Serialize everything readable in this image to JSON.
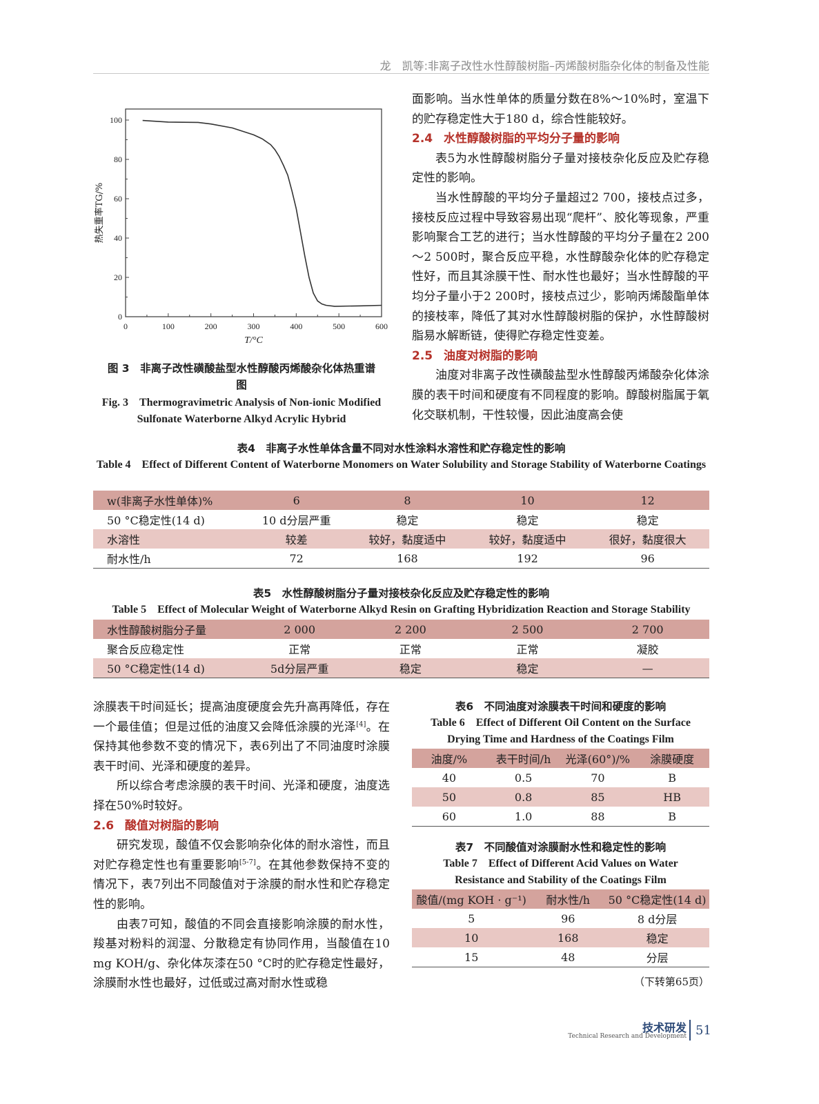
{
  "running_head": "龙　凯等:非离子改性水性醇酸树脂–丙烯酸树脂杂化体的制备及性能",
  "figure3": {
    "caption_cn": "图 3　非离子改性磺酸盐型水性醇酸丙烯酸杂化体热重谱图",
    "caption_en": "Fig. 3　Thermogravimetric Analysis of Non-ionic Modified Sulfonate Waterborne Alkyd Acrylic Hybrid"
  },
  "chart_data": {
    "type": "line",
    "xlabel": "T/°C",
    "ylabel": "热失重率TG/%",
    "xlim": [
      0,
      600
    ],
    "ylim": [
      0,
      105
    ],
    "xticks": [
      "0",
      "100",
      "200",
      "300",
      "400",
      "500",
      "600"
    ],
    "yticks": [
      "0",
      "20",
      "40",
      "60",
      "80",
      "100"
    ],
    "grid": false,
    "series": [
      {
        "color": "#333333",
        "x": [
          40,
          100,
          170,
          200,
          250,
          300,
          320,
          340,
          350,
          360,
          370,
          380,
          390,
          400,
          410,
          420,
          430,
          440,
          450,
          460,
          470,
          490,
          550,
          600
        ],
        "y": [
          99.8,
          99,
          98.8,
          98,
          96,
          92.5,
          90.5,
          87.5,
          85,
          81.5,
          77,
          72,
          64,
          55,
          43,
          31,
          20,
          12,
          8,
          6.5,
          5.8,
          5.3,
          5.5,
          5.8
        ]
      }
    ]
  },
  "right_top": {
    "p1": "面影响。当水性单体的质量分数在8%～10%时，室温下的贮存稳定性大于180 d，综合性能较好。",
    "sec24_num": "2.4",
    "sec24_title": "水性醇酸树脂的平均分子量的影响",
    "p2": "表5为水性醇酸树脂分子量对接枝杂化反应及贮存稳定性的影响。",
    "p3": "当水性醇酸的平均分子量超过2 700，接枝点过多，接枝反应过程中导致容易出现“爬杆”、胶化等现象，严重影响聚合工艺的进行；当水性醇酸的平均分子量在2 200～2 500时，聚合反应平稳，水性醇酸杂化体的贮存稳定性好，而且其涂膜干性、耐水性也最好；当水性醇酸的平均分子量小于2 200时，接枝点过少，影响丙烯酸酯单体的接枝率，降低了其对水性醇酸树脂的保护，水性醇酸树脂易水解断链，使得贮存稳定性变差。",
    "sec25_num": "2.5",
    "sec25_title": "油度对树脂的影响",
    "p4": "油度对非离子改性磺酸盐型水性醇酸丙烯酸杂化体涂膜的表干时间和硬度有不同程度的影响。醇酸树脂属于氧化交联机制，干性较慢，因此油度高会使"
  },
  "table4": {
    "caption_cn": "表4　非离子水性单体含量不同对水性涂料水溶性和贮存稳定性的影响",
    "caption_en": "Table 4　Effect of Different Content of Waterborne Monomers on Water Solubility and Storage Stability of Waterborne Coatings",
    "rows": [
      [
        "w(非离子水性单体)%",
        "6",
        "8",
        "10",
        "12"
      ],
      [
        "50 °C稳定性(14 d)",
        "10 d分层严重",
        "稳定",
        "稳定",
        "稳定"
      ],
      [
        "水溶性",
        "较差",
        "较好，黏度适中",
        "较好，黏度适中",
        "很好，黏度很大"
      ],
      [
        "耐水性/h",
        "72",
        "168",
        "192",
        "96"
      ]
    ]
  },
  "table5": {
    "caption_cn": "表5　水性醇酸树脂分子量对接枝杂化反应及贮存稳定性的影响",
    "caption_en": "Table 5　Effect of Molecular Weight of Waterborne Alkyd Resin on Grafting Hybridization Reaction and Storage Stability",
    "rows": [
      [
        "水性醇酸树脂分子量",
        "2 000",
        "2 200",
        "2 500",
        "2 700"
      ],
      [
        "聚合反应稳定性",
        "正常",
        "正常",
        "正常",
        "凝胶"
      ],
      [
        "50 °C稳定性(14 d)",
        "5d分层严重",
        "稳定",
        "稳定",
        "—"
      ]
    ]
  },
  "left_bottom": {
    "p1a": "涂膜表干时间延长；提高油度硬度会先升高再降低，存在一个最佳值；但是过低的油度又会降低涂膜的光泽",
    "p1sup": "[4]",
    "p1b": "。在保持其他参数不变的情况下，表6列出了不同油度时涂膜表干时间、光泽和硬度的差异。",
    "p2": "所以综合考虑涂膜的表干时间、光泽和硬度，油度选择在50%时较好。",
    "sec26_num": "2.6",
    "sec26_title": "酸值对树脂的影响",
    "p3a": "研究发现，酸值不仅会影响杂化体的耐水溶性，而且对贮存稳定性也有重要影响",
    "p3sup": "[5-7]",
    "p3b": "。在其他参数保持不变的情况下，表7列出不同酸值对于涂膜的耐水性和贮存稳定性的影响。",
    "p4": "由表7可知，酸值的不同会直接影响涂膜的耐水性，羧基对粉料的润湿、分散稳定有协同作用，当酸值在10 mg KOH/g、杂化体灰漆在50 °C时的贮存稳定性最好，涂膜耐水性也最好，过低或过高对耐水性或稳"
  },
  "table6": {
    "caption_cn": "表6　不同油度对涂膜表干时间和硬度的影响",
    "caption_en": "Table 6　Effect of Different Oil Content on the Surface Drying Time and Hardness of the Coatings Film",
    "rows": [
      [
        "油度/%",
        "表干时间/h",
        "光泽(60°)/%",
        "涂膜硬度"
      ],
      [
        "40",
        "0.5",
        "70",
        "B"
      ],
      [
        "50",
        "0.8",
        "85",
        "HB"
      ],
      [
        "60",
        "1.0",
        "88",
        "B"
      ]
    ]
  },
  "table7": {
    "caption_cn": "表7　不同酸值对涂膜耐水性和稳定性的影响",
    "caption_en": "Table 7　Effect of Different Acid Values on Water Resistance and Stability of the Coatings Film",
    "rows": [
      [
        "酸值/(mg KOH · g⁻¹)",
        "耐水性/h",
        "50 °C稳定性(14 d)"
      ],
      [
        "5",
        "96",
        "8 d分层"
      ],
      [
        "10",
        "168",
        "稳定"
      ],
      [
        "15",
        "48",
        "分层"
      ]
    ],
    "continued": "（下转第65页）"
  },
  "footer": {
    "section_cn": "技术研发",
    "section_en": "Technical Research and Development",
    "page": "51",
    "color": "#2d4a78"
  },
  "colors": {
    "heading": "#b5322a",
    "table_dark": "#d4a39d",
    "table_light": "#e9c8c4"
  }
}
